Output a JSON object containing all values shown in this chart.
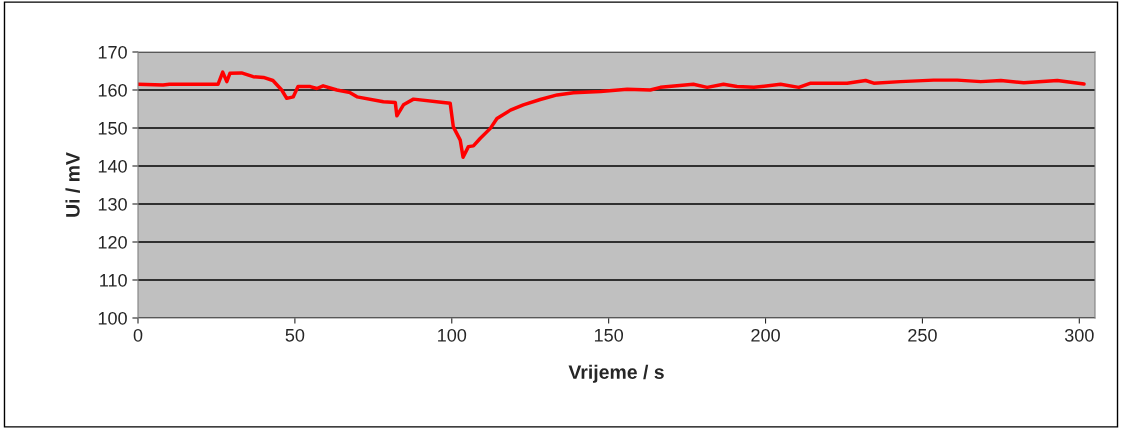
{
  "chart_data": {
    "type": "line",
    "xlabel": "Vrijeme / s",
    "ylabel": "Ui / mV",
    "xlim": [
      0,
      305
    ],
    "xticks": [
      0,
      50,
      100,
      150,
      200,
      250,
      300
    ],
    "ylim": [
      100,
      170
    ],
    "yticks": [
      100,
      110,
      120,
      130,
      140,
      150,
      160,
      170
    ],
    "grid": "y",
    "legend": false,
    "marker": "none",
    "line_style": "solid",
    "series": [
      {
        "color": "#ff0000",
        "x": [
          0,
          8,
          10,
          20,
          25.5,
          27,
          28.3,
          29.3,
          33,
          36.7,
          40,
          43,
          45.8,
          47.4,
          49.5,
          51,
          54.9,
          57,
          59,
          63.4,
          67.6,
          69.8,
          78.2,
          82,
          82.5,
          84.6,
          87.8,
          97.3,
          99.5,
          100.5,
          102.7,
          103.6,
          105.3,
          106.9,
          109.1,
          112.3,
          114.4,
          118.7,
          122.8,
          128.2,
          133.6,
          138.8,
          147.4,
          155.9,
          163.3,
          166.5,
          177,
          181.4,
          186.6,
          190.9,
          196.3,
          204.8,
          210.6,
          214.4,
          226,
          231.9,
          234.5,
          243,
          253.6,
          261.1,
          268.6,
          275,
          282.3,
          293,
          301.5
        ],
        "values": [
          161.5,
          161.3,
          161.5,
          161.5,
          161.5,
          164.7,
          162.2,
          164.4,
          164.5,
          163.5,
          163.3,
          162.5,
          160,
          157.8,
          158.2,
          160.9,
          160.9,
          160.4,
          161.1,
          160,
          159.3,
          158.2,
          156.9,
          156.7,
          153.2,
          156.1,
          157.6,
          156.7,
          156.5,
          150.3,
          146.8,
          142.3,
          145.1,
          145.3,
          147.3,
          149.9,
          152.5,
          154.7,
          156.1,
          157.5,
          158.7,
          159.3,
          159.6,
          160.2,
          160,
          160.7,
          161.5,
          160.7,
          161.5,
          160.9,
          160.7,
          161.5,
          160.7,
          161.8,
          161.8,
          162.5,
          161.8,
          162.2,
          162.6,
          162.6,
          162.2,
          162.5,
          161.9,
          162.5,
          161.6
        ]
      }
    ]
  }
}
